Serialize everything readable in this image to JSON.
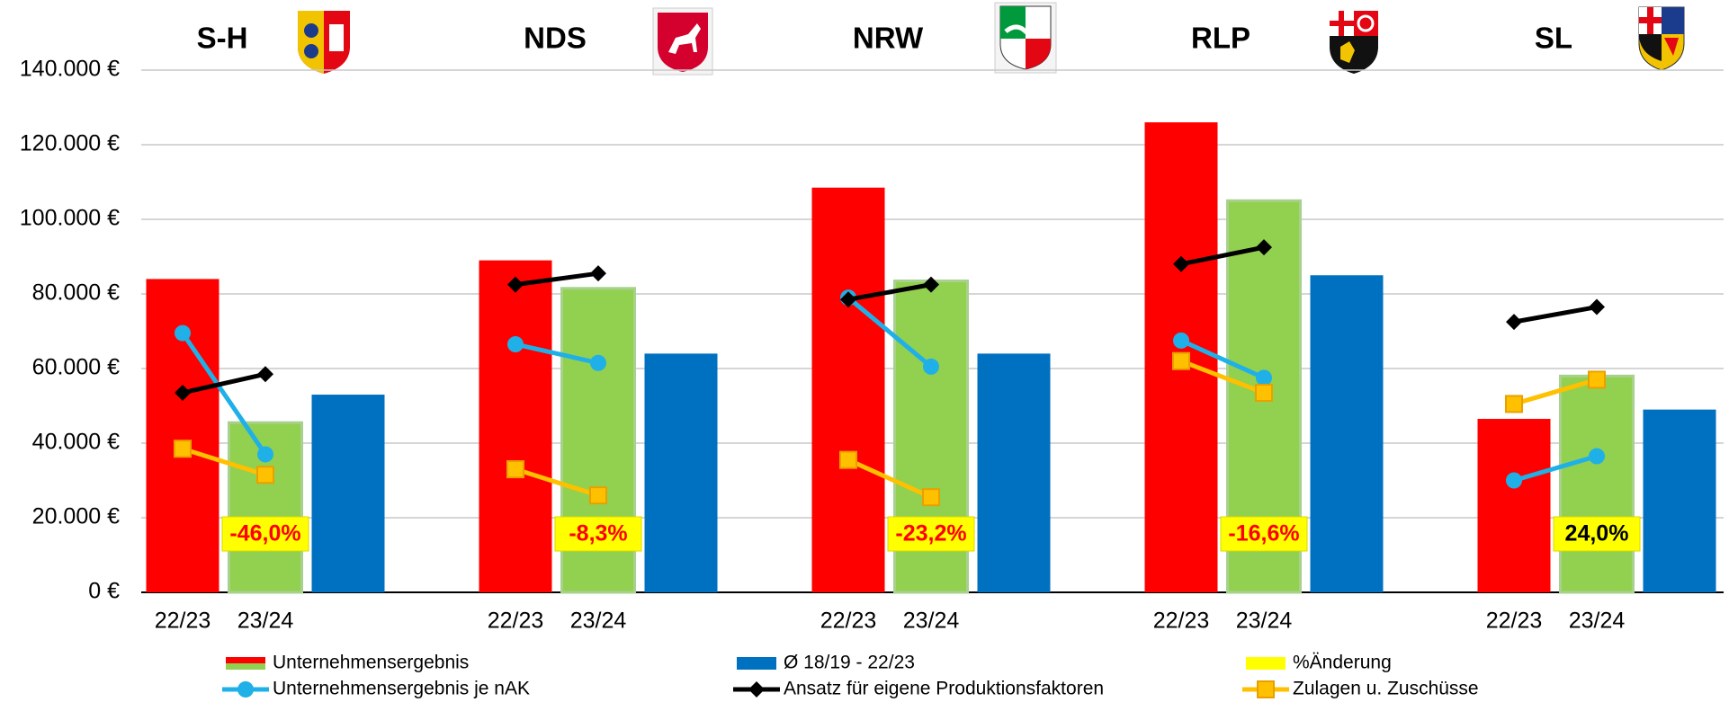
{
  "chart_data": {
    "type": "bar",
    "categories": [
      "S-H",
      "NDS",
      "NRW",
      "RLP",
      "SL"
    ],
    "periods": [
      "22/23",
      "23/24"
    ],
    "ylim": [
      0,
      140000
    ],
    "yticks": [
      {
        "value": 0,
        "label": "0 €"
      },
      {
        "value": 20000,
        "label": "20.000 €"
      },
      {
        "value": 40000,
        "label": "40.000 €"
      },
      {
        "value": 60000,
        "label": "60.000 €"
      },
      {
        "value": 80000,
        "label": "80.000 €"
      },
      {
        "value": 100000,
        "label": "100.000 €"
      },
      {
        "value": 120000,
        "label": "120.000 €"
      },
      {
        "value": 140000,
        "label": "140.000 €"
      }
    ],
    "grid": true,
    "series": [
      {
        "name": "Unternehmensergebnis",
        "kind": "bar-pair",
        "color": "#ff0000",
        "color2": "#92d050",
        "values": [
          [
            84000,
            45500
          ],
          [
            89000,
            81500
          ],
          [
            108500,
            83500
          ],
          [
            126000,
            105000
          ],
          [
            46500,
            58000
          ]
        ]
      },
      {
        "name": "Ø 18/19 - 22/23",
        "kind": "bar",
        "color": "#0070c0",
        "values": [
          53000,
          64000,
          64000,
          85000,
          49000
        ]
      },
      {
        "name": "%Änderung",
        "kind": "label",
        "color": "#ffff00",
        "values": [
          -46.0,
          -8.3,
          -23.2,
          -16.6,
          24.0
        ],
        "value_labels": [
          "-46,0%",
          "-8,3%",
          "-23,2%",
          "-16,6%",
          "24,0%"
        ]
      },
      {
        "name": "Unternehmensergebnis je nAK",
        "kind": "line",
        "marker": "circle",
        "color": "#1fb0e8",
        "values": [
          [
            69500,
            37000
          ],
          [
            66500,
            61500
          ],
          [
            79000,
            60500
          ],
          [
            67500,
            57500
          ],
          [
            30000,
            36500
          ]
        ]
      },
      {
        "name": "Ansatz für eigene Produktionsfaktoren",
        "kind": "line",
        "marker": "diamond",
        "color": "#000000",
        "values": [
          [
            53500,
            58500
          ],
          [
            82500,
            85500
          ],
          [
            78500,
            82500
          ],
          [
            88000,
            92500
          ],
          [
            72500,
            76500
          ]
        ]
      },
      {
        "name": "Zulagen u. Zuschüsse",
        "kind": "line",
        "marker": "square",
        "color": "#ffc000",
        "values": [
          [
            38500,
            31500
          ],
          [
            33000,
            26000
          ],
          [
            35500,
            25500
          ],
          [
            62000,
            53500
          ],
          [
            50500,
            57000
          ]
        ]
      }
    ]
  }
}
